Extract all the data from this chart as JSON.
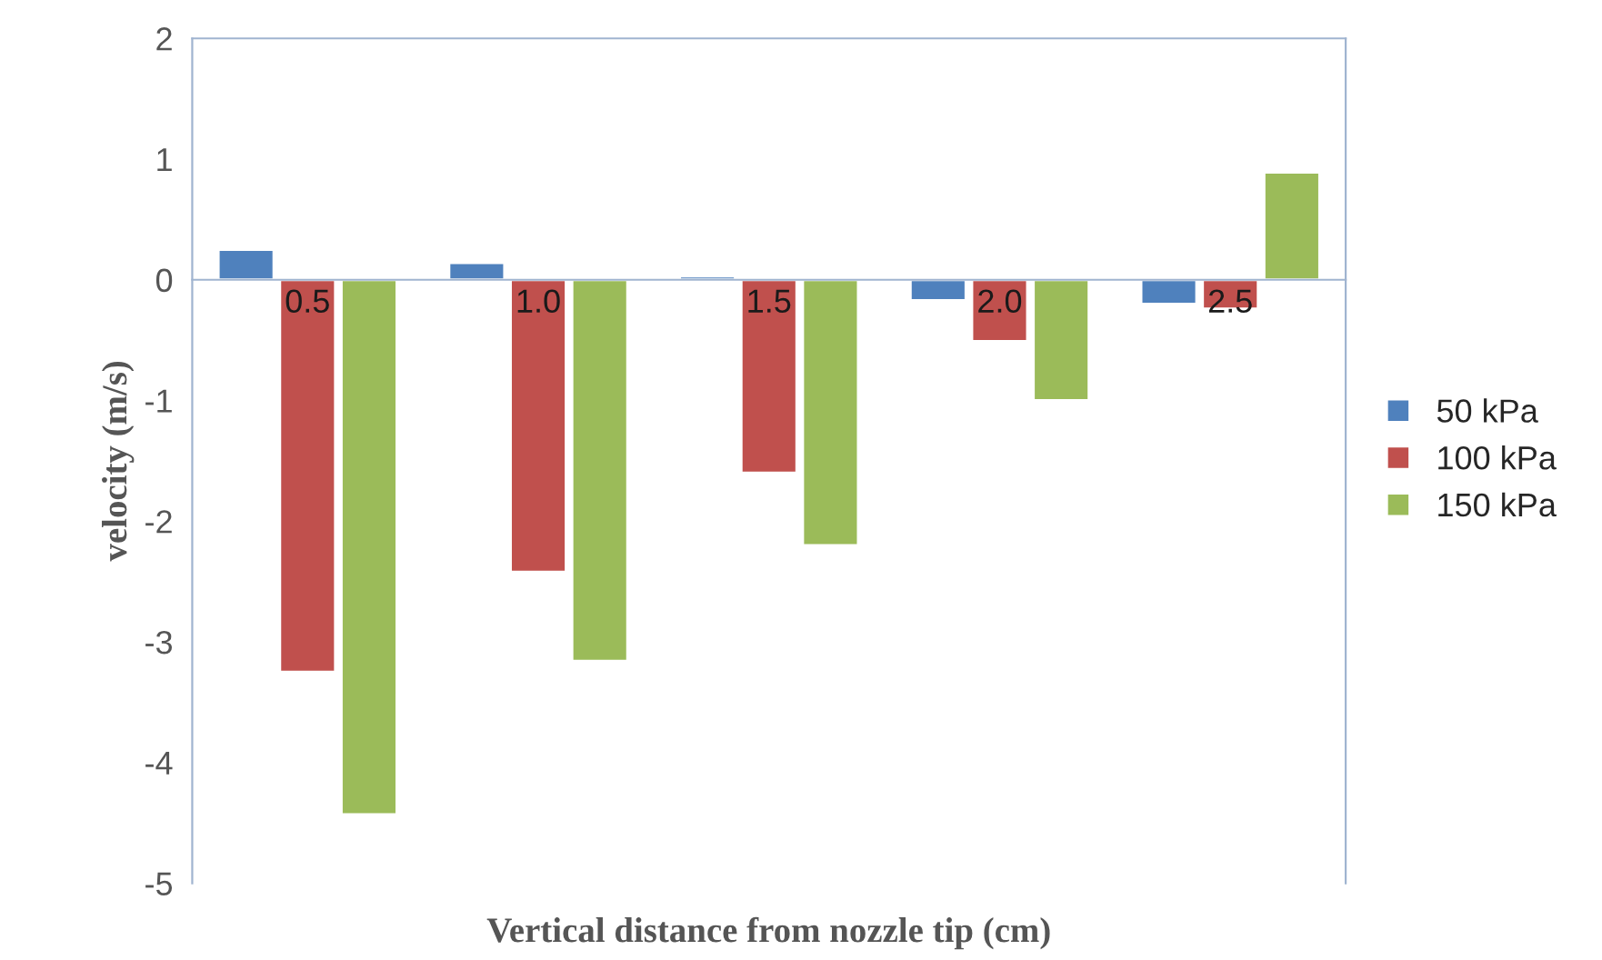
{
  "chart_data": {
    "type": "bar",
    "xlabel": "Vertical distance from nozzle tip (cm)",
    "ylabel": "velocity (m/s)",
    "categories": [
      "0.5",
      "1.0",
      "1.5",
      "2.0",
      "2.5"
    ],
    "series": [
      {
        "name": "50 kPa",
        "color": "#4f81bd",
        "values": [
          0.25,
          0.14,
          0.03,
          -0.17,
          -0.2
        ]
      },
      {
        "name": "100 kPa",
        "color": "#c0504d",
        "values": [
          -3.25,
          -2.42,
          -1.6,
          -0.51,
          -0.24
        ]
      },
      {
        "name": "150 kPa",
        "color": "#9bbb59",
        "values": [
          -4.43,
          -3.16,
          -2.2,
          -1.0,
          0.89
        ]
      }
    ],
    "ylim": [
      -5,
      2
    ],
    "yticks": [
      -5,
      -4,
      -3,
      -2,
      -1,
      0,
      1,
      2
    ],
    "grid": false,
    "legend": "right"
  }
}
